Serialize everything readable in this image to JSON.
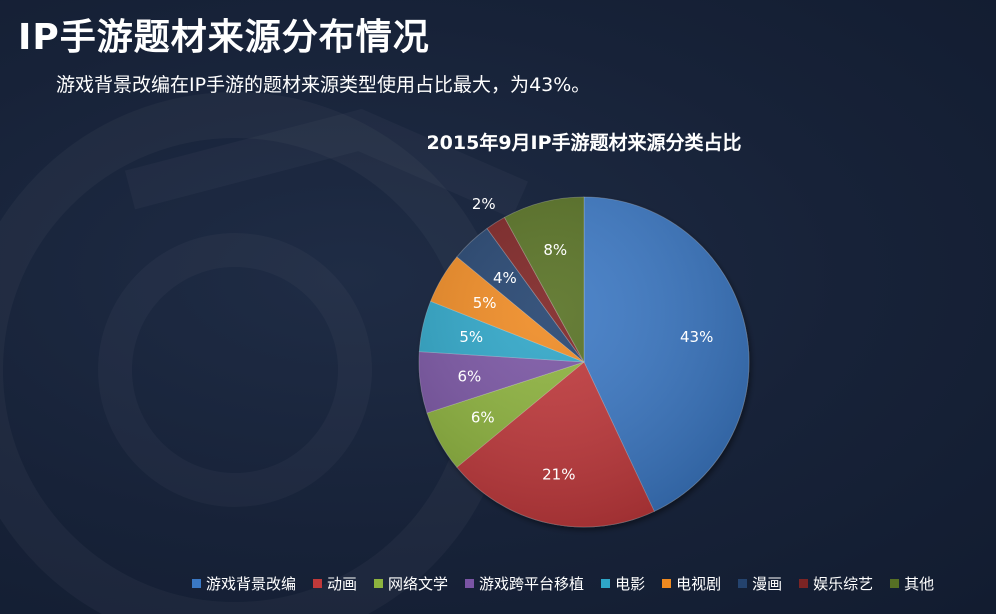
{
  "header": {
    "title": "IP手游题材来源分布情况",
    "subtitle": "游戏背景改编在IP手游的题材来源类型使用占比最大，为43%。"
  },
  "chart_data": {
    "type": "pie",
    "title": "2015年9月IP手游题材来源分类占比",
    "categories": [
      "游戏背景改编",
      "动画",
      "网络文学",
      "游戏跨平台移植",
      "电影",
      "电视剧",
      "漫画",
      "娱乐综艺",
      "其他"
    ],
    "values": [
      43,
      21,
      6,
      6,
      5,
      5,
      4,
      2,
      8
    ],
    "value_labels": [
      "43%",
      "21%",
      "6%",
      "6%",
      "5%",
      "5%",
      "4%",
      "2%",
      "8%"
    ],
    "colors": [
      "#3a78c4",
      "#c0393a",
      "#8db33e",
      "#7a54a4",
      "#2ea6c8",
      "#ef8a20",
      "#24436e",
      "#7b2424",
      "#566f24"
    ],
    "start_angle": "12 o'clock",
    "direction": "clockwise",
    "legend_position": "bottom"
  }
}
